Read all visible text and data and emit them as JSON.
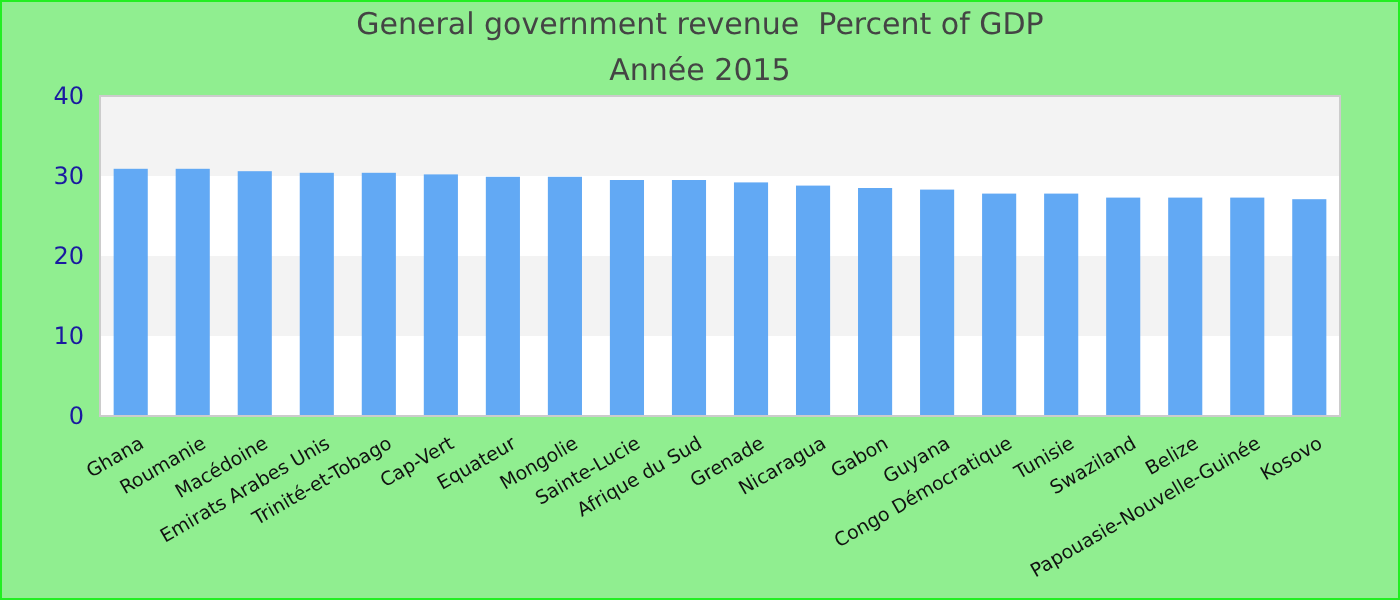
{
  "chart_data": {
    "type": "bar",
    "title": "General government revenue  Percent of GDP",
    "subtitle": "Année 2015",
    "categories": [
      "Ghana",
      "Roumanie",
      "Macédoine",
      "Emirats Arabes Unis",
      "Trinité-et-Tobago",
      "Cap-Vert",
      "Equateur",
      "Mongolie",
      "Sainte-Lucie",
      "Afrique du Sud",
      "Grenade",
      "Nicaragua",
      "Gabon",
      "Guyana",
      "Congo Démocratique",
      "Tunisie",
      "Swaziland",
      "Belize",
      "Papouasie-Nouvelle-Guinée",
      "Kosovo"
    ],
    "values": [
      30.9,
      30.9,
      30.6,
      30.4,
      30.4,
      30.2,
      29.9,
      29.9,
      29.5,
      29.5,
      29.2,
      28.8,
      28.5,
      28.3,
      27.8,
      27.8,
      27.3,
      27.3,
      27.3,
      27.1
    ],
    "color": "#62a9f4",
    "ylim": [
      0,
      40
    ],
    "yticks": [
      0,
      10,
      20,
      30,
      40
    ],
    "grid": false
  }
}
